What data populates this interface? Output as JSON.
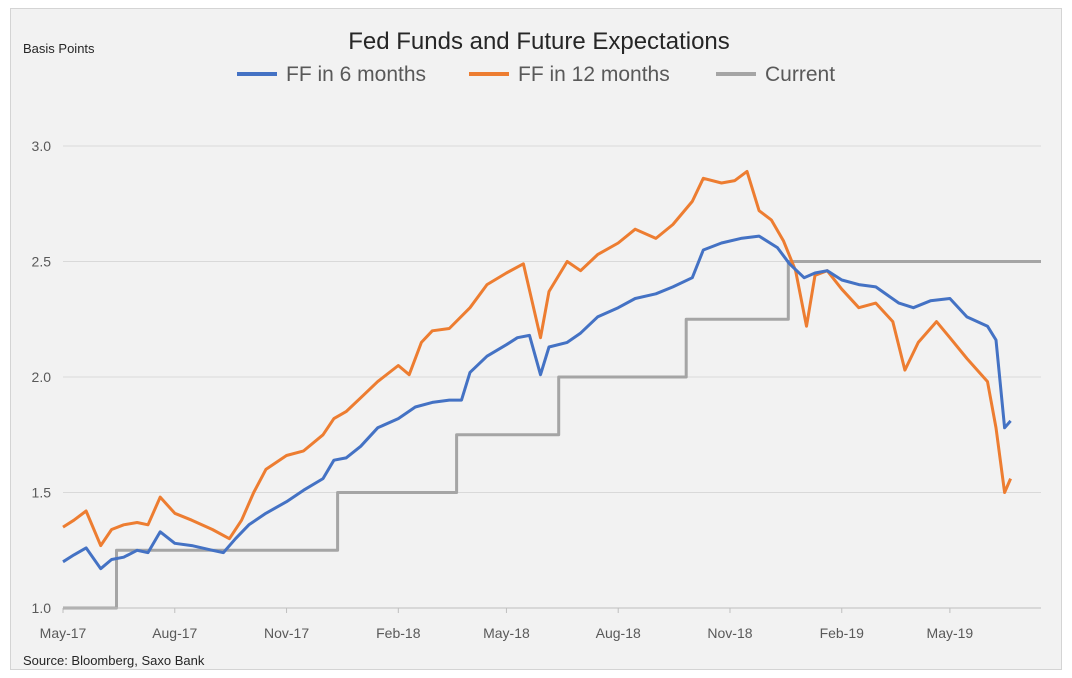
{
  "chart_data": {
    "type": "line",
    "title": "Fed Funds and Future Expectations",
    "ylabel": "Basis Points",
    "source": "Source: Bloomberg, Saxo Bank",
    "ylim": [
      1.0,
      3.0
    ],
    "yticks": [
      "1.0",
      "1.5",
      "2.0",
      "2.5",
      "3.0"
    ],
    "xlim": [
      "2017-05-01",
      "2019-07-15"
    ],
    "xticks": [
      {
        "label": "May-17",
        "date": "2017-05-01"
      },
      {
        "label": "Aug-17",
        "date": "2017-08-01"
      },
      {
        "label": "Nov-17",
        "date": "2017-11-01"
      },
      {
        "label": "Feb-18",
        "date": "2018-02-01"
      },
      {
        "label": "May-18",
        "date": "2018-05-01"
      },
      {
        "label": "Aug-18",
        "date": "2018-08-01"
      },
      {
        "label": "Nov-18",
        "date": "2018-11-01"
      },
      {
        "label": "Feb-19",
        "date": "2019-02-01"
      },
      {
        "label": "May-19",
        "date": "2019-05-01"
      }
    ],
    "grid": true,
    "legend_position": "top",
    "series": [
      {
        "name": "FF in 6 months",
        "color": "#4472c4",
        "points": [
          [
            "2017-05-01",
            1.2
          ],
          [
            "2017-05-10",
            1.23
          ],
          [
            "2017-05-20",
            1.26
          ],
          [
            "2017-06-01",
            1.17
          ],
          [
            "2017-06-10",
            1.21
          ],
          [
            "2017-06-20",
            1.22
          ],
          [
            "2017-07-01",
            1.25
          ],
          [
            "2017-07-10",
            1.24
          ],
          [
            "2017-07-20",
            1.33
          ],
          [
            "2017-08-01",
            1.28
          ],
          [
            "2017-08-15",
            1.27
          ],
          [
            "2017-09-01",
            1.25
          ],
          [
            "2017-09-10",
            1.24
          ],
          [
            "2017-09-20",
            1.3
          ],
          [
            "2017-10-01",
            1.36
          ],
          [
            "2017-10-15",
            1.41
          ],
          [
            "2017-11-01",
            1.46
          ],
          [
            "2017-11-15",
            1.51
          ],
          [
            "2017-12-01",
            1.56
          ],
          [
            "2017-12-10",
            1.64
          ],
          [
            "2017-12-20",
            1.65
          ],
          [
            "2018-01-01",
            1.7
          ],
          [
            "2018-01-15",
            1.78
          ],
          [
            "2018-02-01",
            1.82
          ],
          [
            "2018-02-15",
            1.87
          ],
          [
            "2018-03-01",
            1.89
          ],
          [
            "2018-03-15",
            1.9
          ],
          [
            "2018-03-25",
            1.9
          ],
          [
            "2018-04-01",
            2.02
          ],
          [
            "2018-04-15",
            2.09
          ],
          [
            "2018-05-01",
            2.14
          ],
          [
            "2018-05-10",
            2.17
          ],
          [
            "2018-05-20",
            2.18
          ],
          [
            "2018-05-29",
            2.01
          ],
          [
            "2018-06-05",
            2.13
          ],
          [
            "2018-06-20",
            2.15
          ],
          [
            "2018-07-01",
            2.19
          ],
          [
            "2018-07-15",
            2.26
          ],
          [
            "2018-08-01",
            2.3
          ],
          [
            "2018-08-15",
            2.34
          ],
          [
            "2018-09-01",
            2.36
          ],
          [
            "2018-09-15",
            2.39
          ],
          [
            "2018-10-01",
            2.43
          ],
          [
            "2018-10-10",
            2.55
          ],
          [
            "2018-10-25",
            2.58
          ],
          [
            "2018-11-10",
            2.6
          ],
          [
            "2018-11-25",
            2.61
          ],
          [
            "2018-12-10",
            2.56
          ],
          [
            "2018-12-20",
            2.49
          ],
          [
            "2019-01-01",
            2.43
          ],
          [
            "2019-01-10",
            2.45
          ],
          [
            "2019-01-20",
            2.46
          ],
          [
            "2019-02-01",
            2.42
          ],
          [
            "2019-02-15",
            2.4
          ],
          [
            "2019-03-01",
            2.39
          ],
          [
            "2019-03-20",
            2.32
          ],
          [
            "2019-04-01",
            2.3
          ],
          [
            "2019-04-15",
            2.33
          ],
          [
            "2019-05-01",
            2.34
          ],
          [
            "2019-05-15",
            2.26
          ],
          [
            "2019-06-01",
            2.22
          ],
          [
            "2019-06-08",
            2.16
          ],
          [
            "2019-06-15",
            1.78
          ],
          [
            "2019-06-20",
            1.81
          ]
        ]
      },
      {
        "name": "FF in 12 months",
        "color": "#ed7d31",
        "points": [
          [
            "2017-05-01",
            1.35
          ],
          [
            "2017-05-10",
            1.38
          ],
          [
            "2017-05-20",
            1.42
          ],
          [
            "2017-06-01",
            1.27
          ],
          [
            "2017-06-10",
            1.34
          ],
          [
            "2017-06-20",
            1.36
          ],
          [
            "2017-07-01",
            1.37
          ],
          [
            "2017-07-10",
            1.36
          ],
          [
            "2017-07-20",
            1.48
          ],
          [
            "2017-08-01",
            1.41
          ],
          [
            "2017-08-15",
            1.38
          ],
          [
            "2017-09-01",
            1.34
          ],
          [
            "2017-09-15",
            1.3
          ],
          [
            "2017-09-25",
            1.38
          ],
          [
            "2017-10-05",
            1.5
          ],
          [
            "2017-10-15",
            1.6
          ],
          [
            "2017-11-01",
            1.66
          ],
          [
            "2017-11-15",
            1.68
          ],
          [
            "2017-12-01",
            1.75
          ],
          [
            "2017-12-10",
            1.82
          ],
          [
            "2017-12-20",
            1.85
          ],
          [
            "2018-01-01",
            1.91
          ],
          [
            "2018-01-15",
            1.98
          ],
          [
            "2018-02-01",
            2.05
          ],
          [
            "2018-02-10",
            2.01
          ],
          [
            "2018-02-20",
            2.15
          ],
          [
            "2018-03-01",
            2.2
          ],
          [
            "2018-03-15",
            2.21
          ],
          [
            "2018-04-01",
            2.3
          ],
          [
            "2018-04-15",
            2.4
          ],
          [
            "2018-05-01",
            2.45
          ],
          [
            "2018-05-15",
            2.49
          ],
          [
            "2018-05-29",
            2.17
          ],
          [
            "2018-06-05",
            2.37
          ],
          [
            "2018-06-20",
            2.5
          ],
          [
            "2018-07-01",
            2.46
          ],
          [
            "2018-07-15",
            2.53
          ],
          [
            "2018-08-01",
            2.58
          ],
          [
            "2018-08-15",
            2.64
          ],
          [
            "2018-09-01",
            2.6
          ],
          [
            "2018-09-15",
            2.66
          ],
          [
            "2018-10-01",
            2.76
          ],
          [
            "2018-10-10",
            2.86
          ],
          [
            "2018-10-25",
            2.84
          ],
          [
            "2018-11-05",
            2.85
          ],
          [
            "2018-11-15",
            2.89
          ],
          [
            "2018-11-25",
            2.72
          ],
          [
            "2018-12-05",
            2.68
          ],
          [
            "2018-12-15",
            2.59
          ],
          [
            "2018-12-25",
            2.46
          ],
          [
            "2019-01-03",
            2.22
          ],
          [
            "2019-01-10",
            2.44
          ],
          [
            "2019-01-20",
            2.46
          ],
          [
            "2019-02-01",
            2.38
          ],
          [
            "2019-02-15",
            2.3
          ],
          [
            "2019-03-01",
            2.32
          ],
          [
            "2019-03-15",
            2.24
          ],
          [
            "2019-03-25",
            2.03
          ],
          [
            "2019-04-05",
            2.15
          ],
          [
            "2019-04-20",
            2.24
          ],
          [
            "2019-05-01",
            2.17
          ],
          [
            "2019-05-15",
            2.08
          ],
          [
            "2019-06-01",
            1.98
          ],
          [
            "2019-06-08",
            1.78
          ],
          [
            "2019-06-15",
            1.5
          ],
          [
            "2019-06-20",
            1.56
          ]
        ]
      },
      {
        "name": "Current",
        "color": "#a5a5a5",
        "points": [
          [
            "2017-05-01",
            1.0
          ],
          [
            "2017-06-14",
            1.0
          ],
          [
            "2017-06-14",
            1.25
          ],
          [
            "2017-12-13",
            1.25
          ],
          [
            "2017-12-13",
            1.5
          ],
          [
            "2018-03-21",
            1.5
          ],
          [
            "2018-03-21",
            1.75
          ],
          [
            "2018-06-13",
            1.75
          ],
          [
            "2018-06-13",
            2.0
          ],
          [
            "2018-09-26",
            2.0
          ],
          [
            "2018-09-26",
            2.25
          ],
          [
            "2018-12-19",
            2.25
          ],
          [
            "2018-12-19",
            2.5
          ],
          [
            "2019-07-15",
            2.5
          ]
        ]
      }
    ]
  }
}
